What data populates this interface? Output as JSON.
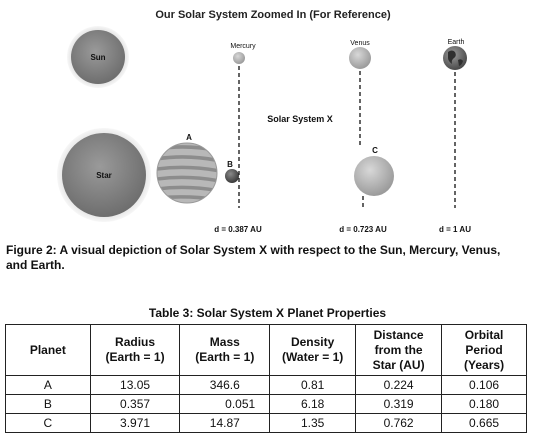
{
  "diagram": {
    "title": "Our Solar System Zoomed In (For Reference)",
    "system_label": "Solar System X",
    "sun_label": "Sun",
    "star_label": "Star",
    "mercury_label": "Mercury",
    "venus_label": "Venus",
    "earth_label": "Earth",
    "planet_a_label": "A",
    "planet_b_label": "B",
    "planet_c_label": "C",
    "d_mercury": "d = 0.387 AU",
    "d_venus": "d = 0.723 AU",
    "d_earth": "d = 1 AU"
  },
  "caption": "Figure 2: A visual depiction of Solar System X with respect to the Sun, Mercury, Venus, and Earth.",
  "table": {
    "title": "Table 3: Solar System X Planet Properties",
    "headers": {
      "planet": "Planet",
      "radius_1": "Radius",
      "radius_2": "(Earth = 1)",
      "mass_1": "Mass",
      "mass_2": "(Earth = 1)",
      "density_1": "Density",
      "density_2": "(Water = 1)",
      "distance_1": "Distance",
      "distance_2": "from the",
      "distance_3": "Star (AU)",
      "period_1": "Orbital",
      "period_2": "Period",
      "period_3": "(Years)"
    },
    "rows": [
      {
        "planet": "A",
        "radius": "13.05",
        "mass": "346.6",
        "density": "0.81",
        "distance": "0.224",
        "period": "0.106"
      },
      {
        "planet": "B",
        "radius": "0.357",
        "mass": "0.051",
        "density": "6.18",
        "distance": "0.319",
        "period": "0.180"
      },
      {
        "planet": "C",
        "radius": "3.971",
        "mass": "14.87",
        "density": "1.35",
        "distance": "0.762",
        "period": "0.665"
      }
    ]
  }
}
